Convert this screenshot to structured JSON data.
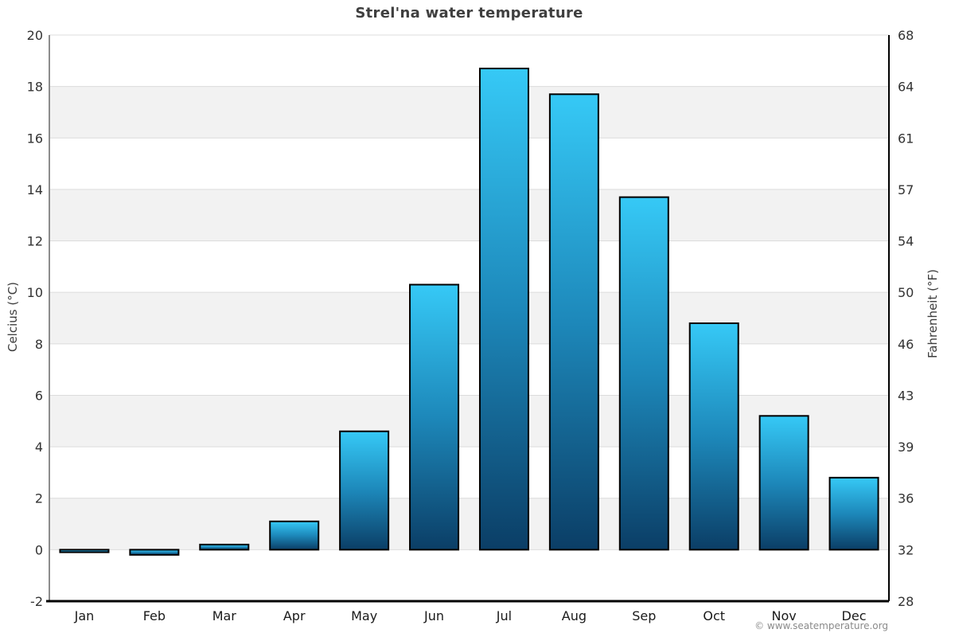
{
  "title": "Strel'na water temperature",
  "footer_credit": "© www.seatemperature.org",
  "axes": {
    "left_title": "Celcius (°C)",
    "right_title": "Fahrenheit (°F)"
  },
  "chart_data": {
    "type": "bar",
    "title": "Strel'na water temperature",
    "categories": [
      "Jan",
      "Feb",
      "Mar",
      "Apr",
      "May",
      "Jun",
      "Jul",
      "Aug",
      "Sep",
      "Oct",
      "Nov",
      "Dec"
    ],
    "values": [
      -0.1,
      -0.2,
      0.2,
      1.1,
      4.6,
      10.3,
      18.7,
      17.7,
      13.7,
      8.8,
      5.2,
      2.8
    ],
    "xlabel": "",
    "ylabel": "Celcius (°C)",
    "ylabel_right": "Fahrenheit (°F)",
    "ylim": [
      -2,
      20
    ],
    "ylim_right": [
      28,
      68
    ],
    "celsius_ticks": [
      20,
      18,
      16,
      14,
      12,
      10,
      8,
      6,
      4,
      2,
      0,
      -2
    ],
    "fahrenheit_ticks": [
      68,
      64,
      61,
      57,
      54,
      50,
      46,
      43,
      39,
      36,
      32,
      28
    ],
    "gray_bands_celsius": [
      [
        16,
        18
      ],
      [
        12,
        14
      ],
      [
        8,
        10
      ],
      [
        4,
        6
      ],
      [
        0,
        2
      ]
    ],
    "grid": "on",
    "legend": "none",
    "colors": {
      "bar_gradient_top": "#36c9f6",
      "bar_gradient_mid": "#1d88ba",
      "bar_gradient_bottom": "#0b3e66",
      "bar_border": "#000000",
      "band_fill": "#f2f2f2",
      "gridline": "#dcdcdc",
      "left_axis_line": "#8c8c8c",
      "right_axis_line": "#000000",
      "bottom_axis_line": "#000000",
      "title_text": "#3f3f3f",
      "tick_text": "#333333",
      "month_text": "#1a1a1a",
      "footer_text": "#8a8a8a"
    }
  }
}
